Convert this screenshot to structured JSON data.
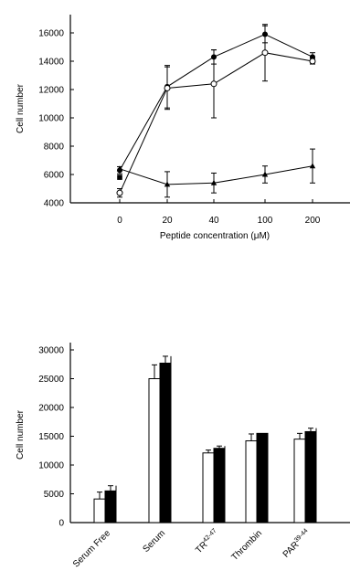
{
  "chart_data": [
    {
      "type": "line",
      "title": "",
      "xlabel": "Peptide concentration (μM)",
      "ylabel": "Cell number",
      "categories": [
        "0",
        "20",
        "40",
        "100",
        "200"
      ],
      "ylim": [
        4000,
        16500
      ],
      "yticks": [
        4000,
        6000,
        8000,
        10000,
        12000,
        14000,
        16000
      ],
      "grid": false,
      "series": [
        {
          "marker": "filled-circle",
          "values": [
            6300,
            12200,
            14300,
            15900,
            14300
          ],
          "errors": [
            250,
            1500,
            500,
            600,
            300
          ]
        },
        {
          "marker": "open-circle",
          "values": [
            4700,
            12100,
            12400,
            14600,
            14000
          ],
          "errors": [
            300,
            1500,
            2400,
            2000,
            200
          ]
        },
        {
          "marker": "filled-square",
          "values": [
            5800,
            null,
            null,
            null,
            null
          ],
          "errors": [
            0,
            0,
            0,
            0,
            0
          ]
        },
        {
          "marker": "filled-triangle",
          "values": [
            6400,
            5300,
            5400,
            6000,
            6600
          ],
          "errors": [
            0,
            900,
            700,
            600,
            1200
          ]
        }
      ]
    },
    {
      "type": "bar",
      "title": "",
      "xlabel": "",
      "ylabel": "Cell number",
      "categories": [
        "Serum Free",
        "Serum",
        "TR",
        "Thrombin",
        "PAR"
      ],
      "category_superscripts": [
        "",
        "",
        "42-47",
        "",
        "39-44"
      ],
      "ylim": [
        0,
        30000
      ],
      "yticks": [
        0,
        5000,
        10000,
        15000,
        20000,
        25000,
        30000
      ],
      "grid": false,
      "series": [
        {
          "color": "#ffffff",
          "values": [
            4100,
            25000,
            12100,
            14200,
            14500
          ],
          "errors": [
            1200,
            2400,
            500,
            1200,
            1000
          ]
        },
        {
          "color": "#000000",
          "values": [
            5500,
            27700,
            12900,
            15500,
            15800
          ],
          "errors": [
            900,
            1200,
            400,
            0,
            600
          ]
        }
      ]
    }
  ]
}
